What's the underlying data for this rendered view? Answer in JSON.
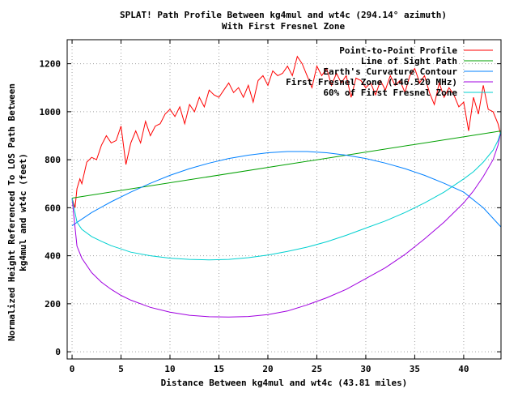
{
  "chart_data": {
    "type": "line",
    "title": "SPLAT! Path Profile Between kg4mul and wt4c (294.14° azimuth)",
    "subtitle": "With First Fresnel Zone",
    "xlabel": "Distance Between kg4mul and wt4c (43.81 miles)",
    "ylabel_line1": "Normalized Height Referenced To LOS Path Between",
    "ylabel_line2": "kg4mul and wt4c (feet)",
    "xlim": [
      -0.5,
      43.81
    ],
    "ylim": [
      -30,
      1300
    ],
    "x_ticks": [
      0,
      5,
      10,
      15,
      20,
      25,
      30,
      35,
      40
    ],
    "x_tick_labels": [
      "0",
      "5",
      "10",
      "15",
      "20",
      "25",
      "30",
      "35",
      "40"
    ],
    "y_ticks": [
      0,
      200,
      400,
      600,
      800,
      1000,
      1200
    ],
    "y_tick_labels": [
      "0",
      "200",
      "400",
      "600",
      "800",
      "1000",
      "1200"
    ],
    "grid": true,
    "legend_position": "top-right",
    "series": [
      {
        "name": "Point-to-Point Profile",
        "color": "#ff0000",
        "x": [
          0,
          0.3,
          0.5,
          0.8,
          1.0,
          1.5,
          2.0,
          2.5,
          3.0,
          3.5,
          4.0,
          4.5,
          5.0,
          5.5,
          6.0,
          6.5,
          7.0,
          7.5,
          8.0,
          8.5,
          9.0,
          9.5,
          10.0,
          10.5,
          11.0,
          11.5,
          12.0,
          12.5,
          13.0,
          13.5,
          14.0,
          14.5,
          15.0,
          15.5,
          16.0,
          16.5,
          17.0,
          17.5,
          18.0,
          18.5,
          19.0,
          19.5,
          20.0,
          20.5,
          21.0,
          21.5,
          22.0,
          22.5,
          23.0,
          23.5,
          24.0,
          24.5,
          25.0,
          25.5,
          26.0,
          26.5,
          27.0,
          27.5,
          28.0,
          28.5,
          29.0,
          29.5,
          30.0,
          30.5,
          31.0,
          31.5,
          32.0,
          32.5,
          33.0,
          33.5,
          34.0,
          34.5,
          35.0,
          35.5,
          36.0,
          36.5,
          37.0,
          37.5,
          38.0,
          38.5,
          39.0,
          39.5,
          40.0,
          40.5,
          41.0,
          41.5,
          42.0,
          42.5,
          43.0,
          43.5,
          43.81
        ],
        "y": [
          640,
          600,
          680,
          720,
          700,
          790,
          810,
          800,
          860,
          900,
          870,
          880,
          940,
          780,
          870,
          920,
          870,
          960,
          900,
          940,
          950,
          990,
          1010,
          980,
          1020,
          950,
          1030,
          1000,
          1060,
          1020,
          1090,
          1070,
          1060,
          1090,
          1120,
          1080,
          1100,
          1060,
          1110,
          1040,
          1130,
          1150,
          1110,
          1170,
          1150,
          1160,
          1190,
          1150,
          1230,
          1200,
          1150,
          1100,
          1190,
          1150,
          1180,
          1110,
          1160,
          1120,
          1150,
          1060,
          1140,
          1130,
          1100,
          1120,
          1070,
          1130,
          1090,
          1150,
          1110,
          1130,
          1080,
          1150,
          1180,
          1120,
          1150,
          1080,
          1030,
          1120,
          1060,
          1100,
          1070,
          1020,
          1040,
          920,
          1060,
          990,
          1110,
          1010,
          1000,
          950,
          900
        ]
      },
      {
        "name": "Line of Sight Path",
        "color": "#00a000",
        "x": [
          0,
          43.81
        ],
        "y": [
          640,
          920
        ]
      },
      {
        "name": "Earth's Curvature Contour",
        "color": "#0080ff",
        "x": [
          0,
          2,
          4,
          6,
          8,
          10,
          12,
          14,
          16,
          18,
          20,
          22,
          24,
          26,
          28,
          30,
          32,
          34,
          36,
          38,
          40,
          42,
          43.81
        ],
        "y": [
          525,
          580,
          625,
          665,
          702,
          735,
          763,
          786,
          805,
          819,
          829,
          834,
          834,
          829,
          819,
          805,
          786,
          763,
          735,
          702,
          665,
          600,
          520
        ]
      },
      {
        "name": "First Fresnel Zone (146.520 MHz)",
        "color": "#a000e0",
        "x": [
          0,
          0.5,
          1,
          2,
          3,
          4,
          5,
          6,
          8,
          10,
          12,
          14,
          16,
          18,
          20,
          22,
          24,
          26,
          28,
          30,
          32,
          34,
          36,
          38,
          40,
          41,
          42,
          43,
          43.5,
          43.81
        ],
        "y": [
          640,
          440,
          390,
          330,
          290,
          260,
          235,
          215,
          185,
          165,
          152,
          146,
          145,
          147,
          155,
          170,
          195,
          225,
          260,
          305,
          350,
          405,
          470,
          540,
          620,
          670,
          730,
          800,
          860,
          920
        ]
      },
      {
        "name": "60% of First Fresnel Zone",
        "color": "#00d0d0",
        "x": [
          0,
          0.5,
          1,
          2,
          3,
          4,
          6,
          8,
          10,
          12,
          14,
          16,
          18,
          20,
          22,
          24,
          26,
          28,
          30,
          32,
          34,
          36,
          38,
          40,
          41,
          42,
          43,
          43.5,
          43.81
        ],
        "y": [
          640,
          540,
          510,
          480,
          460,
          442,
          415,
          400,
          390,
          385,
          383,
          385,
          392,
          403,
          418,
          436,
          458,
          485,
          515,
          545,
          580,
          620,
          665,
          720,
          750,
          790,
          840,
          880,
          920
        ]
      }
    ]
  }
}
